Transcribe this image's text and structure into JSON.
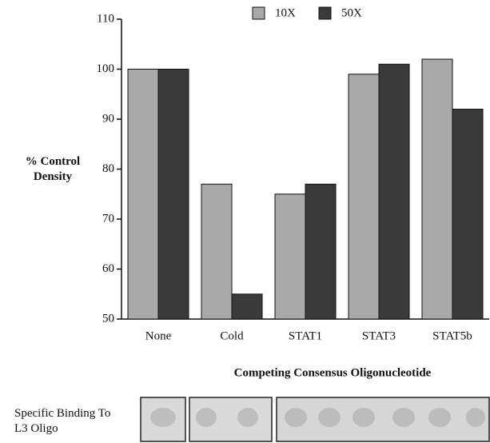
{
  "chart_data": {
    "type": "bar",
    "ylabel": "% Control Density",
    "xlabel": "Competing  Consensus  Oligonucleotide",
    "gel_label": "Specific Binding To L3 Oligo",
    "categories": [
      "None",
      "Cold",
      "STAT1",
      "STAT3",
      "STAT5b"
    ],
    "series": [
      {
        "name": "10X",
        "color": "#a9a9a9",
        "values": [
          100,
          77,
          75,
          99,
          102
        ]
      },
      {
        "name": "50X",
        "color": "#3a3a3a",
        "values": [
          100,
          55,
          77,
          101,
          92
        ]
      }
    ],
    "ylim": [
      50,
      110
    ],
    "yticks": [
      50,
      60,
      70,
      80,
      90,
      100,
      110
    ],
    "grid": false,
    "legend": "top"
  }
}
